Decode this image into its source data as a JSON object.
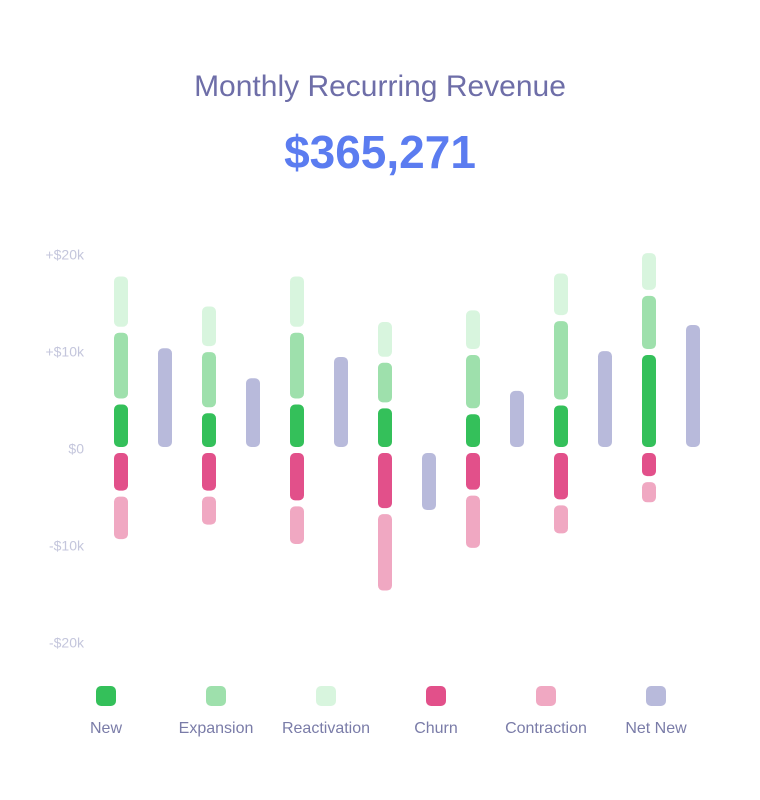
{
  "chart_data": {
    "type": "bar",
    "title": "Monthly Recurring Revenue",
    "subtitle": "$365,271",
    "categories": [
      null,
      null,
      null,
      null,
      null,
      null,
      null
    ],
    "ylim": [
      -20000,
      20000
    ],
    "yticks": [
      {
        "value": 20000,
        "label": "+$20k"
      },
      {
        "value": 10000,
        "label": "+$10k"
      },
      {
        "value": 0,
        "label": "$0"
      },
      {
        "value": -10000,
        "label": "-$10k"
      },
      {
        "value": -20000,
        "label": "-$20k"
      }
    ],
    "grid": false,
    "legend": "bottom",
    "series": [
      {
        "name": "New",
        "color": "#34c05a",
        "values": [
          5000,
          4100,
          5000,
          4600,
          4000,
          4900,
          10100
        ]
      },
      {
        "name": "Expansion",
        "color": "#9ee0ac",
        "values": [
          7400,
          6300,
          7400,
          4700,
          6100,
          8700,
          6100
        ]
      },
      {
        "name": "Reactivation",
        "color": "#d8f5de",
        "values": [
          5800,
          4700,
          5800,
          4200,
          4600,
          4900,
          4400
        ]
      },
      {
        "name": "Churn",
        "color": "#e2508a",
        "values": [
          -4500,
          -4500,
          -5500,
          -6300,
          -4400,
          -5400,
          -3000
        ]
      },
      {
        "name": "Contraction",
        "color": "#f0a8c2",
        "values": [
          -5000,
          -3500,
          -4500,
          -8500,
          -6000,
          -3500,
          -2700
        ]
      },
      {
        "name": "Net New",
        "color": "#b8badb",
        "values": [
          10800,
          7700,
          9900,
          -6500,
          6400,
          10500,
          13200
        ]
      }
    ]
  }
}
